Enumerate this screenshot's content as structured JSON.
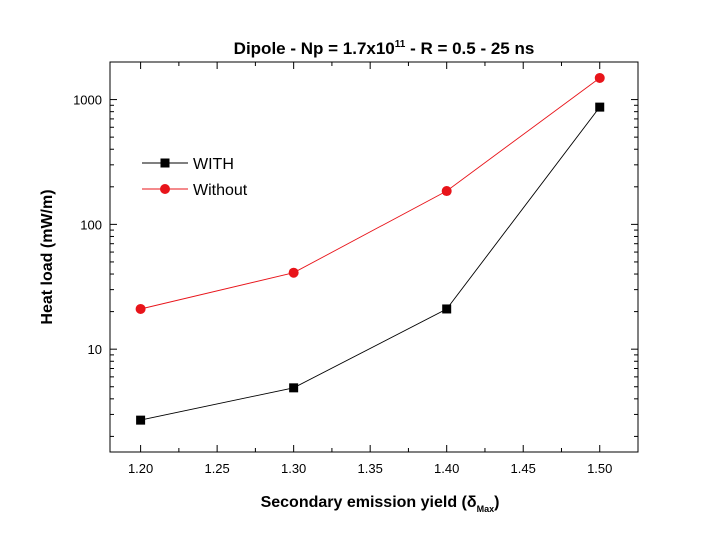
{
  "chart_data": {
    "type": "line",
    "title": {
      "prefix": "Dipole - Np = 1.7x10",
      "superscript": "11",
      "suffix": " - R = 0.5 - 25 ns"
    },
    "xlabel": {
      "prefix": "Secondary emission yield (",
      "delta": "δ",
      "subscript": "Max",
      "suffix": ")"
    },
    "ylabel": "Heat load (mW/m)",
    "xlim": [
      1.18,
      1.525
    ],
    "ylim": [
      1.5,
      2000
    ],
    "yscale": "log",
    "xticks": [
      "1.20",
      "1.25",
      "1.30",
      "1.35",
      "1.40",
      "1.45",
      "1.50"
    ],
    "yticks": [
      "10",
      "100",
      "1000"
    ],
    "legend_position": "upper-left",
    "grid": false,
    "series": [
      {
        "name": "WITH",
        "marker": "square",
        "color": "#000000",
        "x": [
          1.2,
          1.3,
          1.4,
          1.5
        ],
        "y": [
          2.7,
          4.9,
          21,
          870
        ]
      },
      {
        "name": "Without",
        "marker": "circle",
        "color": "#e8141a",
        "x": [
          1.2,
          1.3,
          1.4,
          1.5
        ],
        "y": [
          21,
          41,
          185,
          1490
        ]
      }
    ]
  }
}
